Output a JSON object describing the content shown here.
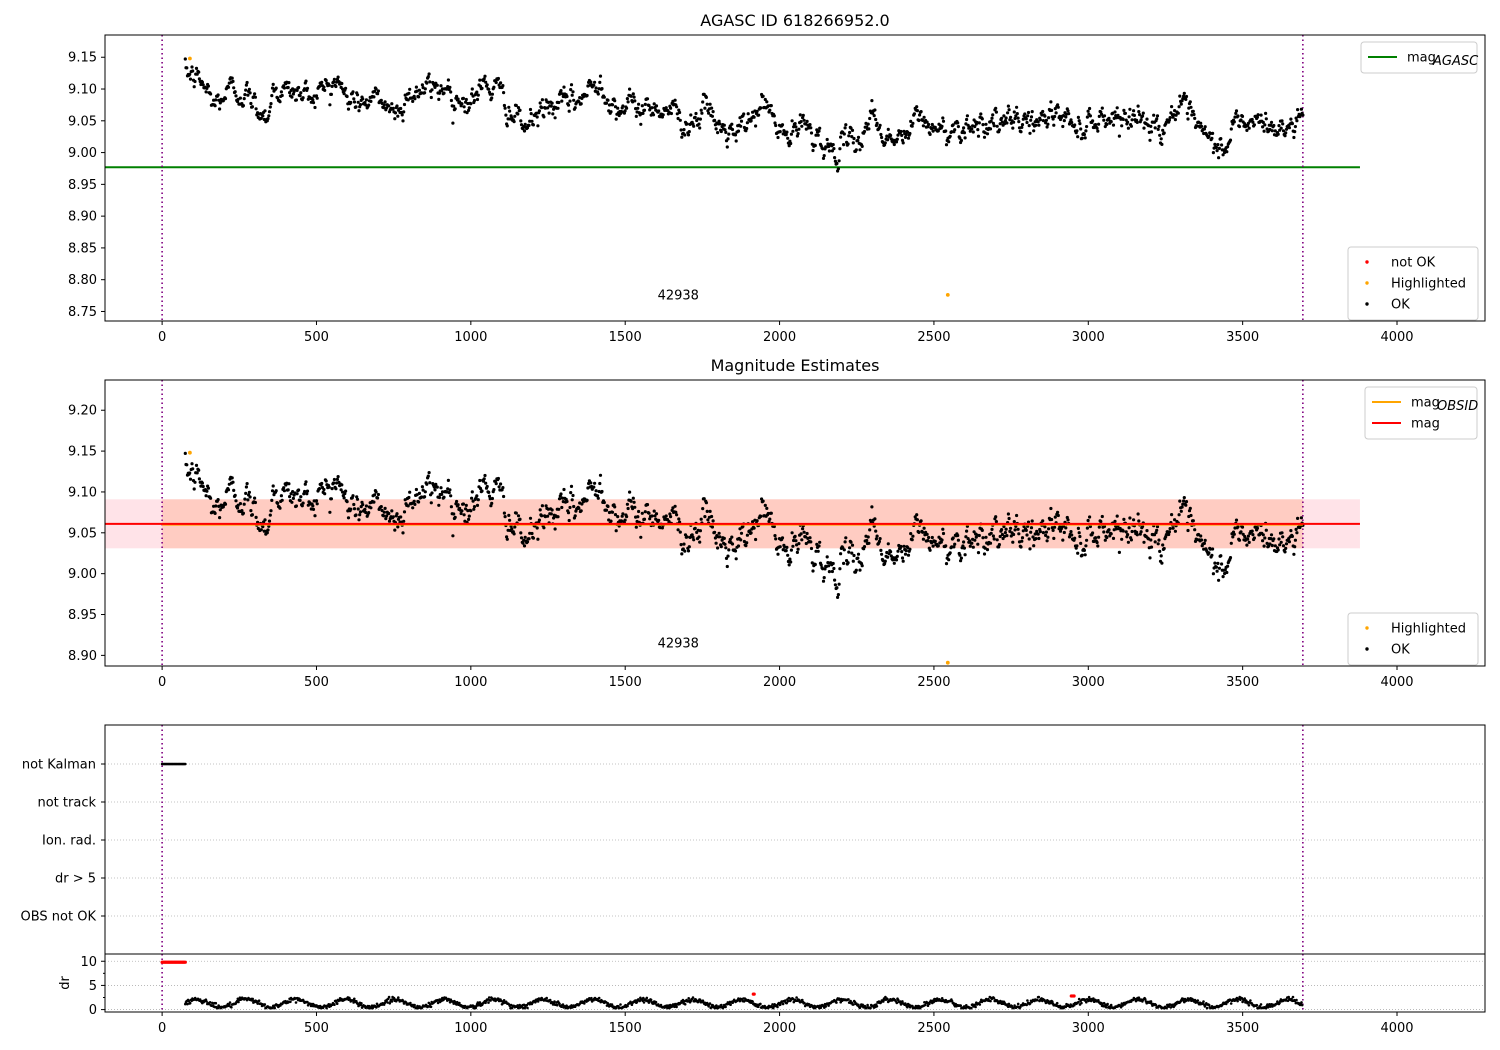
{
  "figure": {
    "colors": {
      "ok": "#000000",
      "not_ok": "#ff0000",
      "highlighted": "#ffa500",
      "agasc_line": "#008000",
      "obsid_line": "#ffa500",
      "mag_line": "#ff0000",
      "band_pink": "#ffc0cb",
      "band_orange": "#ffa07a",
      "vline": "#800080"
    }
  },
  "chart_data": [
    {
      "type": "scatter",
      "title": "AGASC ID 618266952.0",
      "xlim": [
        -185,
        4285
      ],
      "ylim": [
        8.735,
        9.185
      ],
      "xticks": [
        0,
        500,
        1000,
        1500,
        2000,
        2500,
        3000,
        3500,
        4000
      ],
      "xtick_labels": [
        "0",
        "500",
        "1000",
        "1500",
        "2000",
        "2500",
        "3000",
        "3500",
        "4000"
      ],
      "yticks": [
        8.75,
        8.8,
        8.85,
        8.9,
        8.95,
        9.0,
        9.05,
        9.1,
        9.15
      ],
      "ytick_labels": [
        "8.75",
        "8.80",
        "8.85",
        "8.90",
        "8.95",
        "9.00",
        "9.05",
        "9.10",
        "9.15"
      ],
      "obsid_annotation": {
        "text": "42938",
        "x": 1850,
        "y": 8.755
      },
      "vlines_x": [
        0,
        3695
      ],
      "hlines": [
        {
          "name": "mag_AGASC",
          "y": 8.977,
          "x_range": [
            -185,
            3880
          ]
        }
      ],
      "ok_trend": [
        [
          80,
          9.125
        ],
        [
          130,
          9.11
        ],
        [
          170,
          9.075
        ],
        [
          220,
          9.1
        ],
        [
          260,
          9.095
        ],
        [
          300,
          9.075
        ],
        [
          340,
          9.06
        ],
        [
          360,
          9.1
        ],
        [
          420,
          9.095
        ],
        [
          470,
          9.09
        ],
        [
          520,
          9.1
        ],
        [
          560,
          9.115
        ],
        [
          600,
          9.085
        ],
        [
          660,
          9.08
        ],
        [
          720,
          9.08
        ],
        [
          760,
          9.06
        ],
        [
          800,
          9.095
        ],
        [
          880,
          9.1
        ],
        [
          920,
          9.105
        ],
        [
          960,
          9.085
        ],
        [
          1000,
          9.08
        ],
        [
          1050,
          9.11
        ],
        [
          1100,
          9.09
        ],
        [
          1140,
          9.055
        ],
        [
          1180,
          9.04
        ],
        [
          1240,
          9.07
        ],
        [
          1300,
          9.075
        ],
        [
          1360,
          9.085
        ],
        [
          1420,
          9.115
        ],
        [
          1460,
          9.075
        ],
        [
          1520,
          9.07
        ],
        [
          1560,
          9.07
        ],
        [
          1600,
          9.075
        ],
        [
          1660,
          9.065
        ],
        [
          1700,
          9.045
        ],
        [
          1760,
          9.07
        ],
        [
          1800,
          9.04
        ],
        [
          1860,
          9.025
        ],
        [
          1920,
          9.06
        ],
        [
          1960,
          9.08
        ],
        [
          1990,
          9.035
        ],
        [
          2040,
          9.025
        ],
        [
          2080,
          9.045
        ],
        [
          2120,
          9.03
        ],
        [
          2160,
          9.0
        ],
        [
          2210,
          9.01
        ],
        [
          2260,
          9.02
        ],
        [
          2300,
          9.065
        ],
        [
          2330,
          9.03
        ],
        [
          2380,
          9.02
        ],
        [
          2420,
          9.03
        ],
        [
          2450,
          9.06
        ],
        [
          2500,
          9.035
        ],
        [
          2560,
          9.035
        ],
        [
          2600,
          9.045
        ],
        [
          2680,
          9.05
        ],
        [
          2720,
          9.04
        ],
        [
          2800,
          9.055
        ],
        [
          2840,
          9.045
        ],
        [
          2900,
          9.065
        ],
        [
          2960,
          9.04
        ],
        [
          3000,
          9.05
        ],
        [
          3050,
          9.055
        ],
        [
          3100,
          9.06
        ],
        [
          3160,
          9.055
        ],
        [
          3200,
          9.045
        ],
        [
          3240,
          9.04
        ],
        [
          3280,
          9.07
        ],
        [
          3330,
          9.055
        ],
        [
          3380,
          9.02
        ],
        [
          3440,
          9.005
        ],
        [
          3480,
          9.05
        ],
        [
          3520,
          9.045
        ],
        [
          3580,
          9.045
        ],
        [
          3640,
          9.03
        ],
        [
          3660,
          9.05
        ],
        [
          3695,
          9.06
        ]
      ],
      "ok_scatter_sd": 0.008,
      "ok_count": 1500,
      "highlighted_points": [
        [
          90,
          9.148
        ],
        [
          2545,
          8.776
        ]
      ],
      "legend_lines": [
        {
          "label": "mag",
          "sub": "AGASC",
          "color_key": "agasc_line"
        }
      ],
      "legend_points": [
        {
          "label": "not OK",
          "color_key": "not_ok"
        },
        {
          "label": "Highlighted",
          "color_key": "highlighted"
        },
        {
          "label": "OK",
          "color_key": "ok"
        }
      ]
    },
    {
      "type": "scatter",
      "title": "Magnitude Estimates",
      "xlim": [
        -185,
        4285
      ],
      "ylim": [
        8.887,
        9.237
      ],
      "xticks": [
        0,
        500,
        1000,
        1500,
        2000,
        2500,
        3000,
        3500,
        4000
      ],
      "xtick_labels": [
        "0",
        "500",
        "1000",
        "1500",
        "2000",
        "2500",
        "3000",
        "3500",
        "4000"
      ],
      "yticks": [
        8.9,
        8.95,
        9.0,
        9.05,
        9.1,
        9.15,
        9.2
      ],
      "ytick_labels": [
        "8.90",
        "8.95",
        "9.00",
        "9.05",
        "9.10",
        "9.15",
        "9.20"
      ],
      "obsid_annotation": {
        "text": "42938",
        "x": 1850,
        "y": 8.905
      },
      "vlines_x": [
        0,
        3695
      ],
      "hlines": [
        {
          "name": "mag_OBSID",
          "y": 9.06,
          "x_range": [
            0,
            3695
          ]
        },
        {
          "name": "mag",
          "y": 9.061,
          "x_range": [
            -185,
            3880
          ]
        }
      ],
      "bands": [
        {
          "name": "mag band",
          "y_range": [
            9.031,
            9.091
          ],
          "x_range": [
            -185,
            3880
          ],
          "color_key": "band_pink"
        },
        {
          "name": "mag_OBSID band",
          "y_range": [
            9.031,
            9.091
          ],
          "x_range": [
            0,
            3695
          ],
          "color_key": "band_orange"
        }
      ],
      "highlighted_points": [
        [
          90,
          9.148
        ],
        [
          2545,
          8.891
        ]
      ],
      "legend_lines": [
        {
          "label": "mag",
          "sub": "OBSID",
          "color_key": "obsid_line"
        },
        {
          "label": "mag",
          "sub": "",
          "color_key": "mag_line"
        }
      ],
      "legend_points": [
        {
          "label": "Highlighted",
          "color_key": "highlighted"
        },
        {
          "label": "OK",
          "color_key": "ok"
        }
      ]
    },
    {
      "type": "scatter",
      "title": "",
      "xlim": [
        -185,
        4285
      ],
      "categories": [
        "not Kalman",
        "not track",
        "Ion. rad.",
        "dr > 5",
        "OBS not OK"
      ],
      "flag_points": [
        {
          "category": "not Kalman",
          "x_range": [
            0,
            75
          ]
        }
      ],
      "vlines_x": [
        0,
        3695
      ]
    },
    {
      "type": "scatter",
      "title": "",
      "ylabel": "dr",
      "xlim": [
        -185,
        4285
      ],
      "ylim": [
        -0.5,
        11.5
      ],
      "xticks": [
        0,
        500,
        1000,
        1500,
        2000,
        2500,
        3000,
        3500,
        4000
      ],
      "xtick_labels": [
        "0",
        "500",
        "1000",
        "1500",
        "2000",
        "2500",
        "3000",
        "3500",
        "4000"
      ],
      "yticks": [
        0,
        5,
        10
      ],
      "ytick_labels": [
        "0",
        "5",
        "10"
      ],
      "vlines_x": [
        0,
        3695
      ],
      "dr_ok_range": [
        0.3,
        2.6
      ],
      "dr_ok_x_range": [
        75,
        3695
      ],
      "dr_not_ok": [
        {
          "x_range": [
            0,
            75
          ],
          "y": 9.8
        },
        {
          "x_range": [
            1915,
            1920
          ],
          "y": 3.2
        },
        {
          "x_range": [
            2945,
            2955
          ],
          "y": 2.8
        }
      ]
    }
  ]
}
